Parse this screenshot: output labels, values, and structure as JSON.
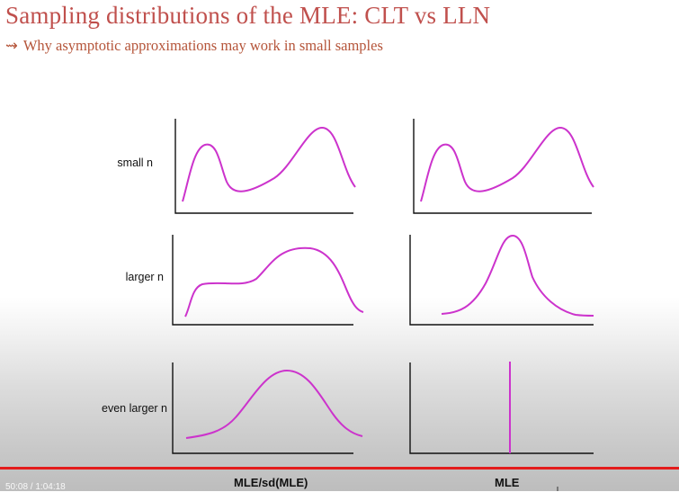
{
  "slide": {
    "title": "Sampling distributions of the MLE: CLT vs LLN",
    "subtitle_arrow": "⇝",
    "subtitle": "Why asymptotic approximations may work in small samples"
  },
  "rows": [
    {
      "label": "small n"
    },
    {
      "label": "larger n"
    },
    {
      "label": "even larger n"
    }
  ],
  "columns": [
    {
      "label": "MLE/sd(MLE)"
    },
    {
      "label": "MLE"
    }
  ],
  "curve_color": "#cc33cc",
  "axis_color": "#111111",
  "player": {
    "time": "50:08 / 1:04:18",
    "progress_color": "#e31b1b"
  }
}
